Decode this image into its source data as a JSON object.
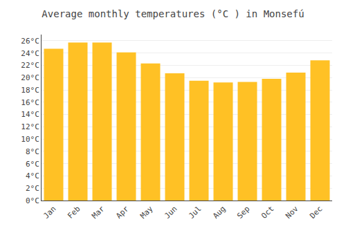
{
  "chart_data": {
    "type": "bar",
    "title": "Average monthly temperatures (°C ) in Monsefú",
    "categories": [
      "Jan",
      "Feb",
      "Mar",
      "Apr",
      "May",
      "Jun",
      "Jul",
      "Aug",
      "Sep",
      "Oct",
      "Nov",
      "Dec"
    ],
    "values": [
      24.7,
      25.7,
      25.7,
      24.1,
      22.3,
      20.7,
      19.5,
      19.2,
      19.3,
      19.8,
      20.8,
      22.8
    ],
    "color": "#FFC125",
    "ylim": [
      0,
      27
    ],
    "yticks": [
      {
        "value": 0,
        "label": "0°C"
      },
      {
        "value": 2,
        "label": "2°C"
      },
      {
        "value": 4,
        "label": "4°C"
      },
      {
        "value": 6,
        "label": "6°C"
      },
      {
        "value": 8,
        "label": "8°C"
      },
      {
        "value": 10,
        "label": "10°C"
      },
      {
        "value": 12,
        "label": "12°C"
      },
      {
        "value": 14,
        "label": "14°C"
      },
      {
        "value": 16,
        "label": "16°C"
      },
      {
        "value": 18,
        "label": "18°C"
      },
      {
        "value": 20,
        "label": "20°C"
      },
      {
        "value": 22,
        "label": "22°C"
      },
      {
        "value": 24,
        "label": "24°C"
      },
      {
        "value": 26,
        "label": "26°C"
      }
    ],
    "grid": true
  }
}
